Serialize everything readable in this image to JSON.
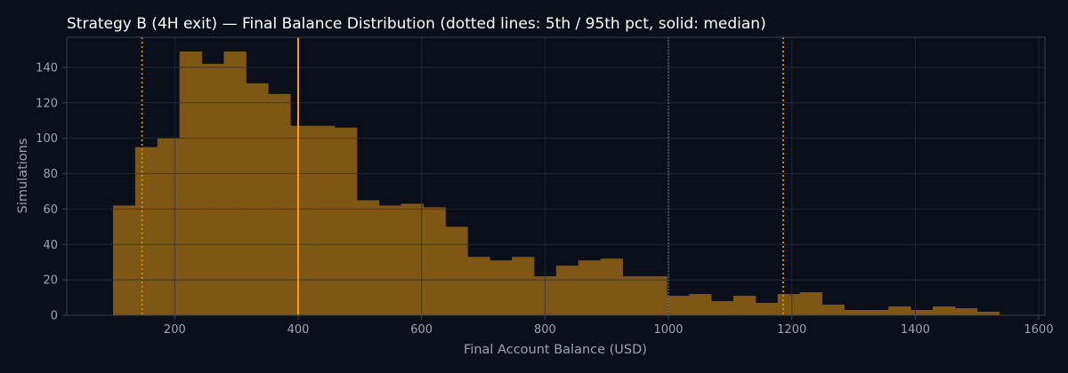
{
  "chart_data": {
    "type": "bar",
    "title": "Strategy B (4H exit) — Final Balance Distribution (dotted lines: 5th / 95th pct, solid: median)",
    "xlabel": "Final Account Balance (USD)",
    "ylabel": "Simulations",
    "xlim": [
      25,
      1610
    ],
    "ylim": [
      0,
      157
    ],
    "x_ticks": [
      200,
      400,
      600,
      800,
      1000,
      1200,
      1400,
      1600
    ],
    "y_ticks": [
      0,
      20,
      40,
      60,
      80,
      100,
      120,
      140
    ],
    "grid": true,
    "bin_start": 100,
    "bin_width": 35.9,
    "counts": [
      62,
      95,
      100,
      149,
      142,
      149,
      131,
      125,
      107,
      107,
      106,
      65,
      62,
      63,
      61,
      50,
      33,
      31,
      33,
      22,
      28,
      31,
      32,
      22,
      22,
      11,
      12,
      8,
      11,
      7,
      12,
      13,
      6,
      3,
      3,
      5,
      3,
      5,
      4,
      2
    ],
    "percentile_lines": {
      "p5": 147,
      "median": 400,
      "p95": 1186,
      "reference": 1000
    },
    "colors": {
      "bar": "#7e5714",
      "median": "#ffa000",
      "percentile": "#c98a16",
      "reference": "#8a93a6",
      "grid": "#263042",
      "axis": "#3a4354",
      "text": "#9aa4b2",
      "title": "#ffffff",
      "background": "#0b0f19"
    }
  }
}
